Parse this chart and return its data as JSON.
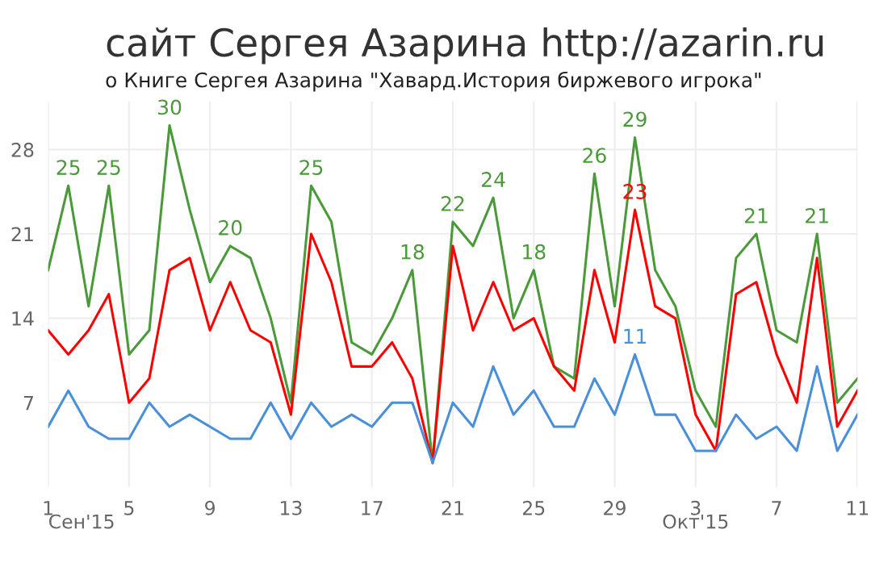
{
  "chart_data": {
    "type": "line",
    "title": "сайт Сергея Азарина http://azarin.ru",
    "subtitle": "о Книге Сергея Азарина \"Хавард.История биржевого игрока\"",
    "x": [
      "2015-09-01",
      "2015-09-02",
      "2015-09-03",
      "2015-09-04",
      "2015-09-05",
      "2015-09-06",
      "2015-09-07",
      "2015-09-08",
      "2015-09-09",
      "2015-09-10",
      "2015-09-11",
      "2015-09-12",
      "2015-09-13",
      "2015-09-14",
      "2015-09-15",
      "2015-09-16",
      "2015-09-17",
      "2015-09-18",
      "2015-09-19",
      "2015-09-20",
      "2015-09-21",
      "2015-09-22",
      "2015-09-23",
      "2015-09-24",
      "2015-09-25",
      "2015-09-26",
      "2015-09-27",
      "2015-09-28",
      "2015-09-29",
      "2015-09-30",
      "2015-10-01",
      "2015-10-02",
      "2015-10-03",
      "2015-10-04",
      "2015-10-05",
      "2015-10-06",
      "2015-10-07",
      "2015-10-08",
      "2015-10-09",
      "2015-10-10",
      "2015-10-11"
    ],
    "series": [
      {
        "color": "#4a9a3a",
        "values": [
          18,
          25,
          15,
          25,
          11,
          13,
          30,
          23,
          17,
          20,
          19,
          14,
          7,
          25,
          22,
          12,
          11,
          14,
          18,
          2,
          22,
          20,
          24,
          14,
          18,
          10,
          9,
          26,
          15,
          29,
          18,
          15,
          8,
          5,
          19,
          21,
          13,
          12,
          21,
          7,
          9
        ],
        "value_labels": [
          null,
          "25",
          null,
          "25",
          null,
          null,
          "30",
          null,
          null,
          "20",
          null,
          null,
          null,
          "25",
          null,
          null,
          null,
          null,
          "18",
          null,
          "22",
          null,
          "24",
          null,
          "18",
          null,
          null,
          "26",
          null,
          "29",
          null,
          null,
          null,
          null,
          null,
          "21",
          null,
          null,
          "21",
          null,
          null
        ]
      },
      {
        "color": "#ff0000",
        "values": [
          13,
          11,
          13,
          16,
          7,
          9,
          18,
          19,
          13,
          17,
          13,
          12,
          6,
          21,
          17,
          10,
          10,
          12,
          9,
          2,
          20,
          13,
          17,
          13,
          14,
          10,
          8,
          18,
          12,
          23,
          15,
          14,
          6,
          3,
          16,
          17,
          11,
          7,
          19,
          5,
          8
        ],
        "value_labels": [
          null,
          null,
          null,
          null,
          null,
          null,
          null,
          null,
          null,
          null,
          null,
          null,
          null,
          null,
          null,
          null,
          null,
          null,
          null,
          null,
          null,
          null,
          null,
          null,
          null,
          null,
          null,
          null,
          null,
          "23",
          null,
          null,
          null,
          null,
          null,
          null,
          null,
          null,
          null,
          null,
          null
        ]
      },
      {
        "color": "#4a90d9",
        "values": [
          5,
          8,
          5,
          4,
          4,
          7,
          5,
          6,
          5,
          4,
          4,
          7,
          4,
          7,
          5,
          6,
          5,
          7,
          7,
          2,
          7,
          5,
          10,
          6,
          8,
          5,
          5,
          9,
          6,
          11,
          6,
          6,
          3,
          3,
          6,
          4,
          5,
          3,
          10,
          3,
          6
        ],
        "value_labels": [
          null,
          null,
          null,
          null,
          null,
          null,
          null,
          null,
          null,
          null,
          null,
          null,
          null,
          null,
          null,
          null,
          null,
          null,
          null,
          null,
          null,
          null,
          null,
          null,
          null,
          null,
          null,
          null,
          null,
          "11",
          null,
          null,
          null,
          null,
          null,
          null,
          null,
          null,
          null,
          null,
          null
        ]
      }
    ],
    "xlim": [
      "2015-09-01",
      "2015-10-11"
    ],
    "xticks": [
      {
        "value": "2015-09-01",
        "label": "1"
      },
      {
        "value": "2015-09-05",
        "label": "5"
      },
      {
        "value": "2015-09-09",
        "label": "9"
      },
      {
        "value": "2015-09-13",
        "label": "13"
      },
      {
        "value": "2015-09-17",
        "label": "17"
      },
      {
        "value": "2015-09-21",
        "label": "21"
      },
      {
        "value": "2015-09-25",
        "label": "25"
      },
      {
        "value": "2015-09-29",
        "label": "29"
      },
      {
        "value": "2015-10-03",
        "label": "3"
      },
      {
        "value": "2015-10-07",
        "label": "7"
      },
      {
        "value": "2015-10-11",
        "label": "11"
      }
    ],
    "ylim": [
      0,
      32
    ],
    "yticks": [
      7,
      14,
      21,
      28
    ],
    "annotations": [
      "Сен'15",
      "Окт'15"
    ],
    "grid": true,
    "marker": "none",
    "line_style": "solid"
  }
}
